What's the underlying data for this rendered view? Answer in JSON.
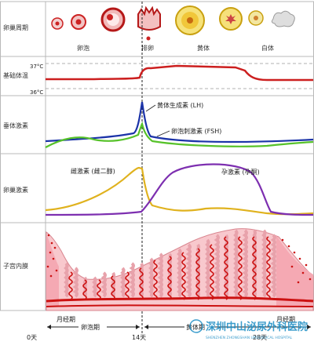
{
  "rows": {
    "ovary_cycle": "卵巢周期",
    "basal_temp": "基础体温",
    "pituitary": "垂体激素",
    "ovarian_hormones": "卵巢激素",
    "endometrium": "子宫内膜"
  },
  "phases": {
    "follicle": "卵泡",
    "ovulation": "排卵",
    "corpus_luteum": "黄体",
    "white_body": "白体"
  },
  "temperature": {
    "high": "37°C",
    "low": "36°C"
  },
  "curves": {
    "lh": "黄体生成素 (LH)",
    "fsh": "卵泡刺激素 (FSH)",
    "estrogen": "雌激素 (雌二醇)",
    "progesterone": "孕激素 (孕酮)"
  },
  "bottom": {
    "menses_left": "月经期",
    "follicular_phase": "卵泡期",
    "luteal_phase": "黄体期",
    "menses_right": "月经期",
    "day0": "0天",
    "day14": "14天",
    "day28": "28天"
  },
  "watermark": {
    "cn": "深圳中山泌尿外科医院",
    "en": "SHENZHEN ZHONGSHAN UROLOGICAL HOSPITAL"
  },
  "colors": {
    "frame": "#b9b9b9",
    "temp_line": "#cc1f1f",
    "lh_line": "#1b33a8",
    "fsh_line": "#57c22a",
    "estrogen_line": "#e0b21e",
    "progesterone_line": "#7d2fb0",
    "tissue": "#f8c8cd",
    "vessel": "#cc1111"
  }
}
